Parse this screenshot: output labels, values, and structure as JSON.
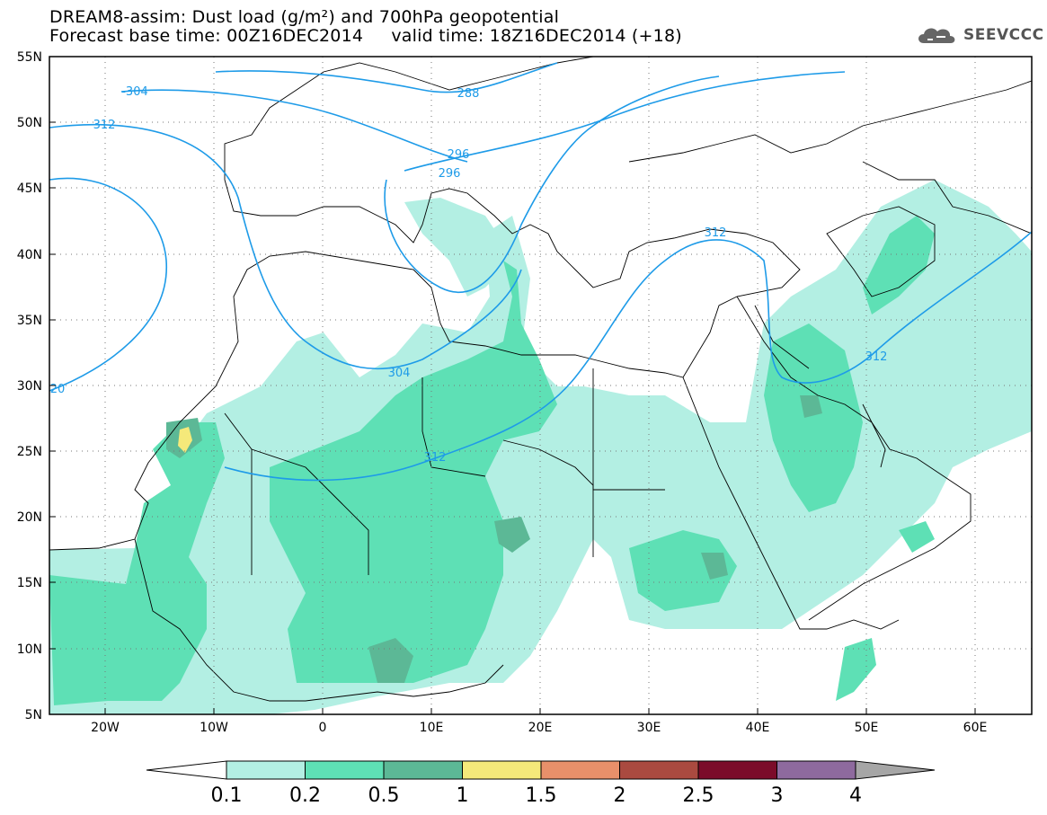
{
  "title": {
    "line1": "DREAM8-assim: Dust load (g/m²) and 700hPa geopotential",
    "line2": "Forecast base time: 00Z16DEC2014     valid time: 18Z16DEC2014 (+18)"
  },
  "logo": {
    "text": "SEEVCCC",
    "icon": "cloud-icon"
  },
  "map": {
    "lon_range": [
      -25,
      65
    ],
    "lat_range": [
      5,
      55
    ],
    "lat_ticks": [
      "55N",
      "50N",
      "45N",
      "40N",
      "35N",
      "30N",
      "25N",
      "20N",
      "15N",
      "10N",
      "5N"
    ],
    "lon_ticks": [
      "20W",
      "10W",
      "0",
      "10E",
      "20E",
      "30E",
      "40E",
      "50E",
      "60E"
    ],
    "contour_labels": [
      "-304",
      "312",
      "288",
      "296",
      "296",
      "312",
      "304",
      "312",
      "312",
      "20"
    ],
    "contour_color": "#1e9be8"
  },
  "colorbar": {
    "labels": [
      "0.1",
      "0.2",
      "0.5",
      "1",
      "1.5",
      "2",
      "2.5",
      "3",
      "4"
    ],
    "colors": [
      "#b3efe3",
      "#5ee0b5",
      "#5cb896",
      "#f5e97a",
      "#e8906a",
      "#aa4a40",
      "#7b0c2a",
      "#8e6a9e"
    ],
    "left_end_color": "#ffffff",
    "right_end_color": "#a6a6a6"
  }
}
